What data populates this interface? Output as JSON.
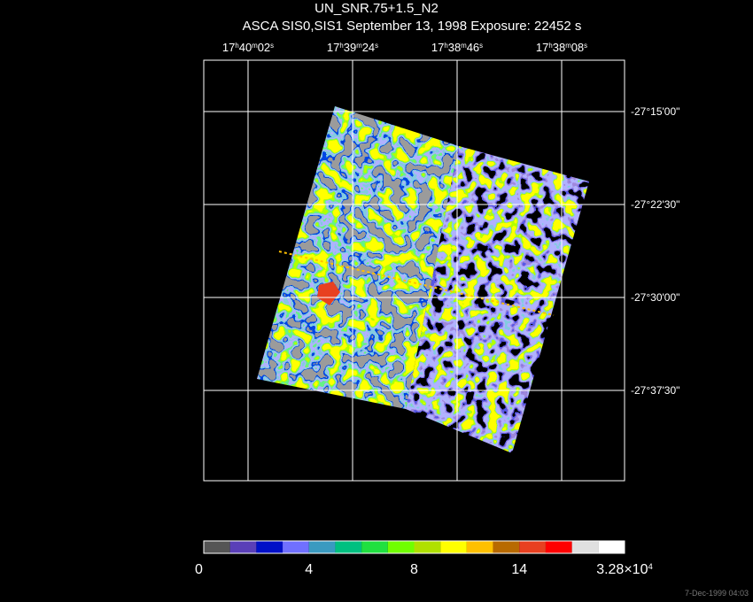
{
  "header": {
    "title": "UN_SNR.75+1.5_N2",
    "subtitle": "ASCA SIS0,SIS1 September 13, 1998 Exposure: 22452 s"
  },
  "ra_labels": [
    [
      {
        "text": "17"
      },
      {
        "text": "h",
        "sup": true
      },
      {
        "text": "40"
      },
      {
        "text": "m",
        "sup": true
      },
      {
        "text": "02"
      },
      {
        "text": "s",
        "sup": true
      }
    ],
    [
      {
        "text": "17"
      },
      {
        "text": "h",
        "sup": true
      },
      {
        "text": "39"
      },
      {
        "text": "m",
        "sup": true
      },
      {
        "text": "24"
      },
      {
        "text": "s",
        "sup": true
      }
    ],
    [
      {
        "text": "17"
      },
      {
        "text": "h",
        "sup": true
      },
      {
        "text": "38"
      },
      {
        "text": "m",
        "sup": true
      },
      {
        "text": "46"
      },
      {
        "text": "s",
        "sup": true
      }
    ],
    [
      {
        "text": "17"
      },
      {
        "text": "h",
        "sup": true
      },
      {
        "text": "38"
      },
      {
        "text": "m",
        "sup": true
      },
      {
        "text": "08"
      },
      {
        "text": "s",
        "sup": true
      }
    ]
  ],
  "dec_labels": [
    "-27°15'00\"",
    "-27°22'30\"",
    "-27°30'00\"",
    "-27°37'30\""
  ],
  "colorbar": {
    "colors": [
      "#555555",
      "#5a3fb8",
      "#0010c8",
      "#7070ff",
      "#3a9ac0",
      "#00c080",
      "#20e040",
      "#70ff00",
      "#b0e000",
      "#ffff00",
      "#ffc000",
      "#b86a00",
      "#e84020",
      "#ff0000",
      "#e0e0e0",
      "#ffffff"
    ],
    "ticks": [
      [
        {
          "text": "0"
        }
      ],
      [
        {
          "text": "4"
        }
      ],
      [
        {
          "text": "8"
        }
      ],
      [
        {
          "text": "14"
        }
      ],
      [
        {
          "text": "3.28×10"
        },
        {
          "text": "4",
          "sup": true
        }
      ]
    ]
  },
  "timestamp": "7-Dec-1999 04:03"
}
